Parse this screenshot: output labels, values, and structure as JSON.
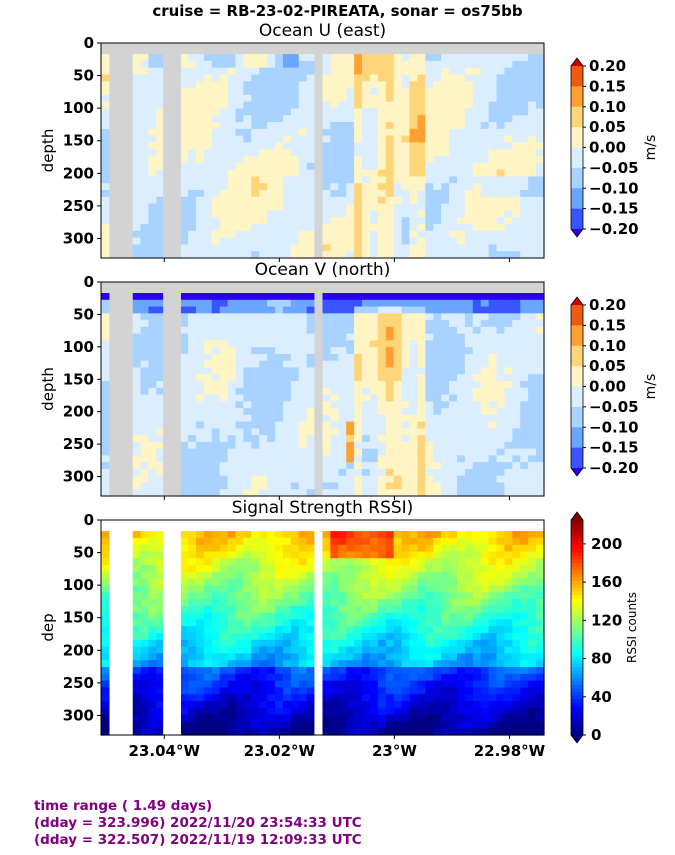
{
  "suptitle": "cruise = RB-23-02-PIREATA,  sonar = os75bb",
  "footer": {
    "line1": "time range ( 1.49 days)",
    "line2": "(dday = 323.996) 2022/11/20 23:54:33 UTC",
    "line3": "(dday = 322.507) 2022/11/19 12:09:33 UTC"
  },
  "colors": {
    "gap": "#d3d3d3",
    "diverging": [
      "#2a00f0",
      "#3a55ff",
      "#6aa6ff",
      "#a8d2ff",
      "#dbeeff",
      "#fff4c4",
      "#ffd57a",
      "#ffa030",
      "#f05a10",
      "#c80000"
    ],
    "footer": "#800080"
  },
  "chart_data": [
    {
      "type": "heatmap",
      "title": "Ocean U (east)",
      "ylabel": "depth",
      "yticks": [
        "0",
        "50",
        "100",
        "150",
        "200",
        "250",
        "300"
      ],
      "ylim": [
        330,
        0
      ],
      "xlim": [
        23.051,
        22.974
      ],
      "colorbar": {
        "label": "m/s",
        "ticks": [
          "0.20",
          "0.15",
          "0.10",
          "0.05",
          "0.00",
          "−0.05",
          "−0.10",
          "−0.15",
          "−0.20"
        ],
        "levels": [
          -0.2,
          -0.15,
          -0.1,
          -0.05,
          0,
          0.05,
          0.1,
          0.15,
          0.2
        ]
      },
      "gaps_lon": [
        [
          23.0493,
          23.0455
        ],
        [
          23.0402,
          23.0371
        ],
        [
          23.0139,
          23.0126
        ]
      ],
      "surface_gap_depth": 17,
      "value_range": [
        -0.2,
        0.2
      ]
    },
    {
      "type": "heatmap",
      "title": "Ocean V (north)",
      "ylabel": "depth",
      "yticks": [
        "0",
        "50",
        "100",
        "150",
        "200",
        "250",
        "300"
      ],
      "ylim": [
        330,
        0
      ],
      "xlim": [
        23.051,
        22.974
      ],
      "colorbar": {
        "label": "m/s",
        "ticks": [
          "0.20",
          "0.15",
          "0.10",
          "0.05",
          "0.00",
          "−0.05",
          "−0.10",
          "−0.15",
          "−0.20"
        ],
        "levels": [
          -0.2,
          -0.15,
          -0.1,
          -0.05,
          0,
          0.05,
          0.1,
          0.15,
          0.2
        ]
      },
      "gaps_lon": [
        [
          23.0493,
          23.0455
        ],
        [
          23.0402,
          23.0371
        ],
        [
          23.0139,
          23.0126
        ]
      ],
      "surface_gap_depth": 17,
      "value_range": [
        -0.2,
        0.2
      ]
    },
    {
      "type": "heatmap",
      "title": "Signal Strength RSSI)",
      "ylabel": "dep",
      "yticks": [
        "0",
        "50",
        "100",
        "150",
        "200",
        "250",
        "300"
      ],
      "ylim": [
        330,
        0
      ],
      "xlim": [
        23.051,
        22.974
      ],
      "xticks": [
        "23.04°W",
        "23.02°W",
        "23°W",
        "22.98°W"
      ],
      "xtick_values": [
        23.04,
        23.02,
        23.0,
        22.98
      ],
      "colorbar": {
        "label": "RSSI counts",
        "ticks": [
          "200",
          "160",
          "120",
          "80",
          "40",
          "0"
        ],
        "tick_values": [
          200,
          160,
          120,
          80,
          40,
          0
        ],
        "range": [
          0,
          225
        ]
      },
      "gaps_lon": [
        [
          23.0493,
          23.0455
        ],
        [
          23.0402,
          23.0371
        ],
        [
          23.0139,
          23.0126
        ]
      ],
      "surface_gap_depth": 17,
      "value_range": [
        0,
        225
      ]
    }
  ]
}
